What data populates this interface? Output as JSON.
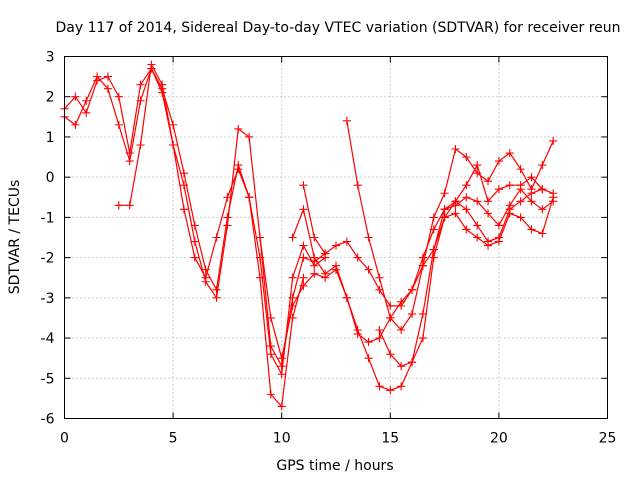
{
  "chart_data": {
    "type": "scatter",
    "title": "Day 117 of 2014, Sidereal Day-to-day VTEC variation (SDTVAR) for receiver reun",
    "xlabel": "GPS time / hours",
    "ylabel": "SDTVAR / TECUs",
    "xlim": [
      0,
      25
    ],
    "ylim": [
      -6,
      3
    ],
    "x_ticks": [
      "0",
      "5",
      "10",
      "15",
      "20",
      "25"
    ],
    "y_ticks": [
      "-6",
      "-5",
      "-4",
      "-3",
      "-2",
      "-1",
      "0",
      "1",
      "2",
      "3"
    ],
    "grid": true,
    "marker": "plus",
    "color": "#ff0000",
    "series": [
      {
        "x": [
          0.0,
          0.5,
          1.0,
          1.5,
          2.0,
          2.5,
          3.0,
          3.5,
          4.0,
          4.5,
          5.0,
          5.5,
          6.0,
          6.5,
          7.0,
          7.5,
          8.0,
          8.5,
          9.0,
          9.5,
          10.0,
          10.5,
          11.0
        ],
        "y": [
          1.5,
          1.3,
          1.9,
          2.5,
          2.2,
          1.3,
          0.4,
          1.9,
          2.7,
          2.1,
          0.8,
          -0.8,
          -2.0,
          -2.5,
          -1.5,
          -0.5,
          0.2,
          -0.5,
          -2.5,
          -5.4,
          -5.7,
          -3.5,
          -2.5
        ]
      },
      {
        "x": [
          0.0,
          0.5,
          1.0,
          1.5,
          2.0,
          2.5,
          3.0,
          3.5,
          4.0,
          4.5,
          5.0,
          5.5,
          6.0,
          6.5,
          7.0,
          7.5,
          8.0,
          8.5,
          9.0,
          9.5,
          10.0,
          10.5,
          11.0,
          11.5,
          12.0
        ],
        "y": [
          1.7,
          2.0,
          1.6,
          2.4,
          2.5,
          2.0,
          0.6,
          2.3,
          2.7,
          2.2,
          1.3,
          0.1,
          -1.2,
          -2.3,
          -2.8,
          -1.0,
          0.3,
          -0.5,
          -2.0,
          -4.4,
          -4.9,
          -2.5,
          -1.7,
          -2.2,
          -2.0
        ]
      },
      {
        "x": [
          2.5,
          3.0,
          3.5,
          4.0,
          4.5,
          5.0,
          5.5,
          6.0,
          6.5,
          7.0,
          7.5,
          8.0,
          8.5,
          9.0,
          9.5,
          10.0,
          10.5,
          11.0,
          11.5,
          12.0
        ],
        "y": [
          -0.7,
          -0.7,
          0.8,
          2.8,
          2.3,
          0.8,
          -0.2,
          -1.6,
          -2.6,
          -3.0,
          -1.2,
          1.2,
          1.0,
          -1.5,
          -4.2,
          -4.7,
          -3.0,
          -2.0,
          -2.1,
          -1.9
        ]
      },
      {
        "x": [
          9.0,
          9.5,
          10.0,
          10.5,
          11.0,
          11.5,
          12.0,
          12.5,
          13.0,
          13.5,
          14.0,
          14.5,
          15.0,
          15.5,
          16.0,
          16.5,
          17.0,
          17.5,
          18.0,
          18.5,
          19.0,
          19.5,
          20.0,
          20.5,
          21.0,
          21.5,
          22.0,
          22.5
        ],
        "y": [
          -1.5,
          -3.5,
          -4.5,
          -3.2,
          -2.7,
          -2.4,
          -2.5,
          -2.3,
          -3.0,
          -3.8,
          -4.5,
          -5.2,
          -5.3,
          -5.2,
          -4.6,
          -3.4,
          -1.8,
          -0.8,
          -0.7,
          -0.5,
          -0.6,
          -0.9,
          -1.2,
          -0.7,
          -0.3,
          -0.6,
          -0.8,
          -0.6
        ]
      },
      {
        "x": [
          10.5,
          11.0,
          11.5,
          12.0,
          12.5,
          13.0,
          13.5,
          14.0,
          14.5,
          15.0,
          15.5,
          16.0,
          16.5,
          17.0,
          17.5,
          18.0,
          18.5,
          19.0,
          19.5,
          20.0,
          20.5,
          21.0,
          21.5,
          22.0,
          22.5
        ],
        "y": [
          -1.5,
          -0.8,
          -2.0,
          -2.4,
          -2.2,
          -3.0,
          -3.9,
          -4.1,
          -4.0,
          -3.5,
          -3.1,
          -2.8,
          -2.2,
          -1.8,
          -1.0,
          -0.6,
          -0.8,
          -1.2,
          -1.6,
          -1.5,
          -0.8,
          -0.6,
          -0.4,
          -0.3,
          -0.4
        ]
      },
      {
        "x": [
          11.0,
          11.5,
          12.0,
          12.5,
          13.0,
          13.5,
          14.0,
          14.5,
          15.0,
          15.5,
          16.0,
          16.5,
          17.0,
          17.5,
          18.0,
          18.5,
          19.0,
          19.5,
          20.0,
          20.5,
          21.0,
          21.5,
          22.0
        ],
        "y": [
          -0.2,
          -1.5,
          -1.9,
          -1.7,
          -1.6,
          -2.0,
          -2.3,
          -2.8,
          -3.2,
          -3.2,
          -2.8,
          -2.0,
          -1.3,
          -0.8,
          -0.6,
          -0.2,
          0.3,
          -0.6,
          -0.3,
          -0.2,
          -0.2,
          0.0,
          -0.3
        ]
      },
      {
        "x": [
          13.0,
          13.5,
          14.0,
          14.5,
          15.0,
          15.5,
          16.0,
          16.5,
          17.0,
          17.5,
          18.0,
          18.5,
          19.0,
          19.5,
          20.0,
          20.5,
          21.0,
          21.5,
          22.0,
          22.5
        ],
        "y": [
          1.4,
          -0.2,
          -1.5,
          -2.5,
          -3.5,
          -3.8,
          -3.4,
          -2.2,
          -1.0,
          -0.4,
          0.7,
          0.5,
          0.1,
          -0.1,
          0.4,
          0.6,
          0.2,
          -0.3,
          0.3,
          0.9
        ]
      },
      {
        "x": [
          14.5,
          15.0,
          15.5,
          16.0,
          16.5,
          17.0,
          17.5,
          18.0,
          18.5,
          19.0,
          19.5,
          20.0,
          20.5,
          21.0,
          21.5,
          22.0,
          22.5
        ],
        "y": [
          -3.8,
          -4.4,
          -4.7,
          -4.6,
          -4.0,
          -2.0,
          -1.0,
          -0.9,
          -1.3,
          -1.5,
          -1.7,
          -1.6,
          -0.9,
          -1.0,
          -1.3,
          -1.4,
          -0.5
        ]
      }
    ]
  }
}
